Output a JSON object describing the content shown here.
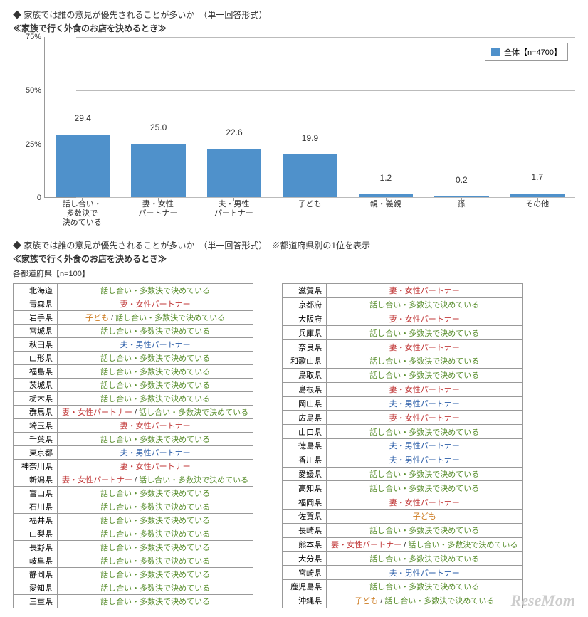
{
  "chart_section": {
    "heading": "◆ 家族では誰の意見が優先されることが多いか　（単一回答形式）",
    "subheading": "≪家族で行く外食のお店を決めるとき≫",
    "chart": {
      "type": "bar",
      "categories": [
        "話し合い・\n多数決で\n決めている",
        "妻・女性\nパートナー",
        "夫・男性\nパートナー",
        "子ども",
        "親・義親",
        "孫",
        "その他"
      ],
      "values": [
        29.4,
        25.0,
        22.6,
        19.9,
        1.2,
        0.2,
        1.7
      ],
      "bar_color": "#4f91cb",
      "ylim": [
        0,
        75
      ],
      "yticks": [
        0,
        25,
        50,
        75
      ],
      "ytick_suffix": "%",
      "background_color": "#ffffff",
      "grid_color": "#bbbbbb",
      "label_fontsize": 12,
      "axis_fontsize": 11,
      "legend_label": "全体【n=4700】"
    }
  },
  "table_section": {
    "heading": "◆ 家族では誰の意見が優先されることが多いか　（単一回答形式）　※都道府県別の1位を表示",
    "subheading": "≪家族で行く外食のお店を決めるとき≫",
    "note": "各都道府県【n=100】",
    "answer_colors": {
      "話し合い・多数決で決めている": "c-green",
      "妻・女性パートナー": "c-red",
      "夫・男性パートナー": "c-blue",
      "子ども": "c-orange"
    },
    "left": [
      {
        "pref": "北海道",
        "parts": [
          "話し合い・多数決で決めている"
        ]
      },
      {
        "pref": "青森県",
        "parts": [
          "妻・女性パートナー"
        ]
      },
      {
        "pref": "岩手県",
        "parts": [
          "子ども",
          "話し合い・多数決で決めている"
        ]
      },
      {
        "pref": "宮城県",
        "parts": [
          "話し合い・多数決で決めている"
        ]
      },
      {
        "pref": "秋田県",
        "parts": [
          "夫・男性パートナー"
        ]
      },
      {
        "pref": "山形県",
        "parts": [
          "話し合い・多数決で決めている"
        ]
      },
      {
        "pref": "福島県",
        "parts": [
          "話し合い・多数決で決めている"
        ]
      },
      {
        "pref": "茨城県",
        "parts": [
          "話し合い・多数決で決めている"
        ]
      },
      {
        "pref": "栃木県",
        "parts": [
          "話し合い・多数決で決めている"
        ]
      },
      {
        "pref": "群馬県",
        "parts": [
          "妻・女性パートナー",
          "話し合い・多数決で決めている"
        ]
      },
      {
        "pref": "埼玉県",
        "parts": [
          "妻・女性パートナー"
        ]
      },
      {
        "pref": "千葉県",
        "parts": [
          "話し合い・多数決で決めている"
        ]
      },
      {
        "pref": "東京都",
        "parts": [
          "夫・男性パートナー"
        ]
      },
      {
        "pref": "神奈川県",
        "parts": [
          "妻・女性パートナー"
        ]
      },
      {
        "pref": "新潟県",
        "parts": [
          "妻・女性パートナー",
          "話し合い・多数決で決めている"
        ]
      },
      {
        "pref": "富山県",
        "parts": [
          "話し合い・多数決で決めている"
        ]
      },
      {
        "pref": "石川県",
        "parts": [
          "話し合い・多数決で決めている"
        ]
      },
      {
        "pref": "福井県",
        "parts": [
          "話し合い・多数決で決めている"
        ]
      },
      {
        "pref": "山梨県",
        "parts": [
          "話し合い・多数決で決めている"
        ]
      },
      {
        "pref": "長野県",
        "parts": [
          "話し合い・多数決で決めている"
        ]
      },
      {
        "pref": "岐阜県",
        "parts": [
          "話し合い・多数決で決めている"
        ]
      },
      {
        "pref": "静岡県",
        "parts": [
          "話し合い・多数決で決めている"
        ]
      },
      {
        "pref": "愛知県",
        "parts": [
          "話し合い・多数決で決めている"
        ]
      },
      {
        "pref": "三重県",
        "parts": [
          "話し合い・多数決で決めている"
        ]
      }
    ],
    "right": [
      {
        "pref": "滋賀県",
        "parts": [
          "妻・女性パートナー"
        ]
      },
      {
        "pref": "京都府",
        "parts": [
          "話し合い・多数決で決めている"
        ]
      },
      {
        "pref": "大阪府",
        "parts": [
          "妻・女性パートナー"
        ]
      },
      {
        "pref": "兵庫県",
        "parts": [
          "話し合い・多数決で決めている"
        ]
      },
      {
        "pref": "奈良県",
        "parts": [
          "妻・女性パートナー"
        ]
      },
      {
        "pref": "和歌山県",
        "parts": [
          "話し合い・多数決で決めている"
        ]
      },
      {
        "pref": "鳥取県",
        "parts": [
          "話し合い・多数決で決めている"
        ]
      },
      {
        "pref": "島根県",
        "parts": [
          "妻・女性パートナー"
        ]
      },
      {
        "pref": "岡山県",
        "parts": [
          "夫・男性パートナー"
        ]
      },
      {
        "pref": "広島県",
        "parts": [
          "妻・女性パートナー"
        ]
      },
      {
        "pref": "山口県",
        "parts": [
          "話し合い・多数決で決めている"
        ]
      },
      {
        "pref": "徳島県",
        "parts": [
          "夫・男性パートナー"
        ]
      },
      {
        "pref": "香川県",
        "parts": [
          "夫・男性パートナー"
        ]
      },
      {
        "pref": "愛媛県",
        "parts": [
          "話し合い・多数決で決めている"
        ]
      },
      {
        "pref": "高知県",
        "parts": [
          "話し合い・多数決で決めている"
        ]
      },
      {
        "pref": "福岡県",
        "parts": [
          "妻・女性パートナー"
        ]
      },
      {
        "pref": "佐賀県",
        "parts": [
          "子ども"
        ]
      },
      {
        "pref": "長崎県",
        "parts": [
          "話し合い・多数決で決めている"
        ]
      },
      {
        "pref": "熊本県",
        "parts": [
          "妻・女性パートナー",
          "話し合い・多数決で決めている"
        ]
      },
      {
        "pref": "大分県",
        "parts": [
          "話し合い・多数決で決めている"
        ]
      },
      {
        "pref": "宮崎県",
        "parts": [
          "夫・男性パートナー"
        ]
      },
      {
        "pref": "鹿児島県",
        "parts": [
          "話し合い・多数決で決めている"
        ]
      },
      {
        "pref": "沖縄県",
        "parts": [
          "子ども",
          "話し合い・多数決で決めている"
        ]
      }
    ]
  },
  "watermark": "ReseMom"
}
